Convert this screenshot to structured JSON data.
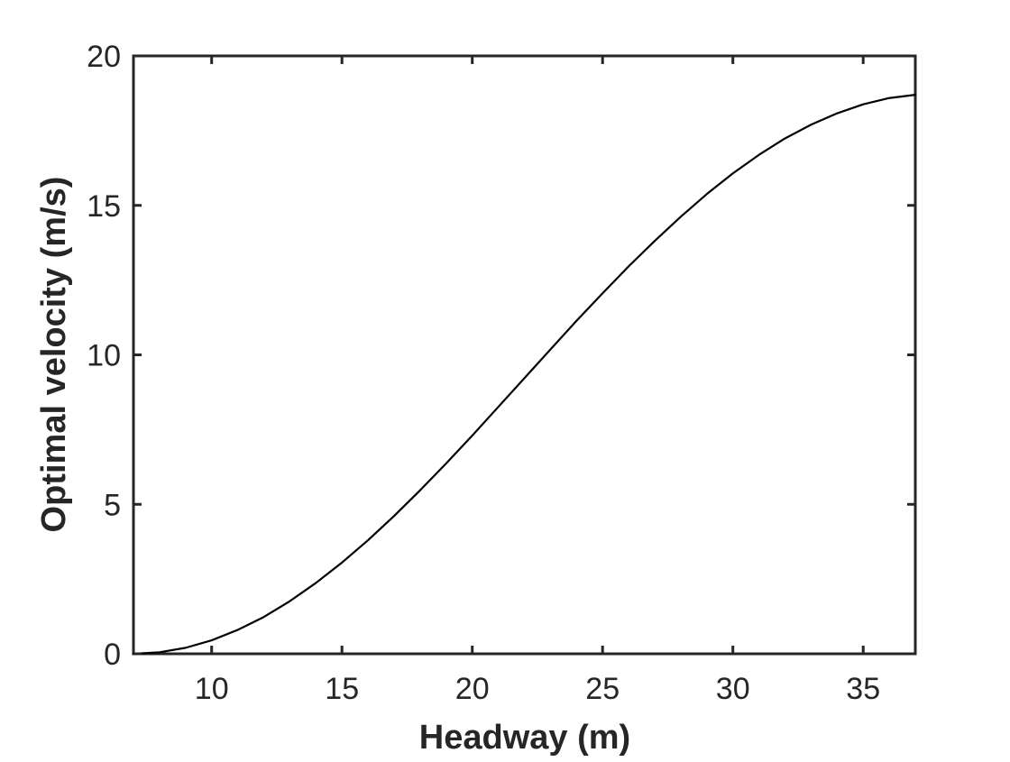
{
  "chart_data": {
    "type": "line",
    "title": "",
    "xlabel": "Headway (m)",
    "ylabel": "Optimal velocity (m/s)",
    "xlim": [
      7,
      37
    ],
    "ylim": [
      0,
      20
    ],
    "xticks": [
      10,
      15,
      20,
      25,
      30,
      35
    ],
    "yticks": [
      0,
      5,
      10,
      15,
      20
    ],
    "grid": false,
    "legend": "none",
    "colors": {
      "line": "#000000",
      "axes": "#262626",
      "background": "#ffffff"
    },
    "series": [
      {
        "x": [
          7,
          8,
          9,
          10,
          11,
          12,
          13,
          14,
          15,
          16,
          17,
          18,
          19,
          20,
          21,
          22,
          23,
          24,
          25,
          26,
          27,
          28,
          29,
          30,
          31,
          32,
          33,
          34,
          35,
          36,
          37
        ],
        "y": [
          0.0,
          0.05,
          0.2,
          0.45,
          0.8,
          1.23,
          1.76,
          2.37,
          3.05,
          3.8,
          4.61,
          5.47,
          6.37,
          7.3,
          8.26,
          9.22,
          10.18,
          11.14,
          12.06,
          12.96,
          13.81,
          14.62,
          15.38,
          16.07,
          16.69,
          17.24,
          17.7,
          18.08,
          18.38,
          18.59,
          18.7
        ]
      }
    ]
  }
}
